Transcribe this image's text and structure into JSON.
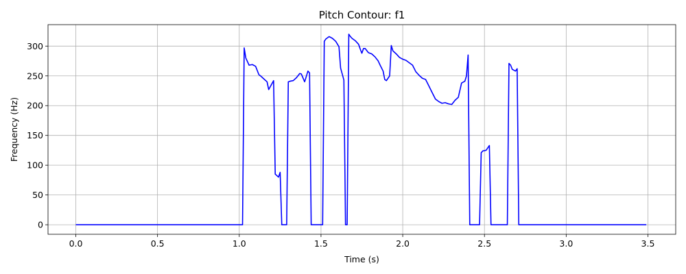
{
  "chart_data": {
    "type": "line",
    "title": "Pitch Contour: f1",
    "xlabel": "Time (s)",
    "ylabel": "Frequency (Hz)",
    "xlim": [
      -0.17,
      3.67
    ],
    "ylim": [
      -16,
      336
    ],
    "xticks": [
      0.0,
      0.5,
      1.0,
      1.5,
      2.0,
      2.5,
      3.0,
      3.5
    ],
    "xtick_labels": [
      "0.0",
      "0.5",
      "1.0",
      "1.5",
      "2.0",
      "2.5",
      "3.0",
      "3.5"
    ],
    "yticks": [
      0,
      50,
      100,
      150,
      200,
      250,
      300
    ],
    "ytick_labels": [
      "0",
      "50",
      "100",
      "150",
      "200",
      "250",
      "300"
    ],
    "grid": true,
    "series": [
      {
        "color": "#0000ff",
        "x": [
          0.0,
          1.02,
          1.03,
          1.04,
          1.06,
          1.08,
          1.1,
          1.12,
          1.13,
          1.15,
          1.17,
          1.18,
          1.2,
          1.21,
          1.22,
          1.24,
          1.25,
          1.26,
          1.27,
          1.29,
          1.3,
          1.31,
          1.33,
          1.35,
          1.37,
          1.38,
          1.4,
          1.42,
          1.43,
          1.44,
          1.51,
          1.52,
          1.53,
          1.55,
          1.57,
          1.59,
          1.61,
          1.62,
          1.64,
          1.65,
          1.66,
          1.67,
          1.68,
          1.69,
          1.71,
          1.73,
          1.74,
          1.75,
          1.76,
          1.77,
          1.79,
          1.81,
          1.83,
          1.85,
          1.86,
          1.88,
          1.89,
          1.9,
          1.92,
          1.93,
          1.94,
          1.96,
          1.98,
          2.0,
          2.02,
          2.04,
          2.06,
          2.08,
          2.1,
          2.12,
          2.14,
          2.16,
          2.18,
          2.2,
          2.22,
          2.24,
          2.26,
          2.28,
          2.3,
          2.32,
          2.34,
          2.36,
          2.38,
          2.39,
          2.4,
          2.41,
          2.42,
          2.47,
          2.48,
          2.49,
          2.51,
          2.52,
          2.53,
          2.54,
          2.64,
          2.65,
          2.66,
          2.67,
          2.69,
          2.7,
          2.71,
          3.49
        ],
        "y": [
          0,
          0,
          297,
          280,
          268,
          269,
          266,
          252,
          250,
          245,
          240,
          227,
          237,
          242,
          85,
          80,
          88,
          0,
          0,
          0,
          240,
          241,
          242,
          247,
          254,
          253,
          240,
          258,
          255,
          0,
          0,
          308,
          312,
          316,
          313,
          308,
          299,
          263,
          243,
          0,
          0,
          320,
          316,
          313,
          309,
          303,
          295,
          288,
          296,
          296,
          289,
          287,
          282,
          275,
          269,
          258,
          244,
          242,
          250,
          301,
          292,
          287,
          281,
          278,
          276,
          272,
          268,
          257,
          251,
          246,
          244,
          233,
          222,
          211,
          207,
          204,
          205,
          203,
          202,
          209,
          214,
          238,
          241,
          250,
          285,
          0,
          0,
          0,
          121,
          124,
          125,
          129,
          133,
          0,
          0,
          271,
          268,
          261,
          258,
          262,
          0,
          0
        ]
      }
    ]
  }
}
